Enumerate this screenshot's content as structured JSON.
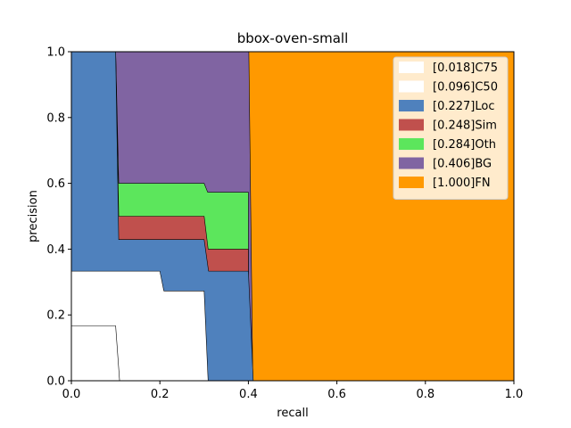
{
  "chart_data": {
    "type": "area",
    "title": "bbox-oven-small",
    "xlabel": "recall",
    "ylabel": "precision",
    "xlim": [
      0,
      1
    ],
    "ylim": [
      0,
      1
    ],
    "xticks": [
      "0.0",
      "0.2",
      "0.4",
      "0.6",
      "0.8",
      "1.0"
    ],
    "yticks": [
      "0.0",
      "0.2",
      "0.4",
      "0.6",
      "0.8",
      "1.0"
    ],
    "grid": false,
    "legend_position": "top-right",
    "series": [
      {
        "name": "[1.000]FN",
        "color": "#ff9900",
        "points": [
          [
            0,
            1
          ],
          [
            1,
            1
          ]
        ]
      },
      {
        "name": "[0.406]BG",
        "color": "#8064a2",
        "points": [
          [
            0,
            1
          ],
          [
            0.401,
            1
          ],
          [
            0.41,
            0.0
          ]
        ]
      },
      {
        "name": "[0.284]Oth",
        "color": "#5ce65c",
        "points": [
          [
            0,
            1
          ],
          [
            0.1,
            1
          ],
          [
            0.107,
            0.6
          ],
          [
            0.3,
            0.6
          ],
          [
            0.308,
            0.573
          ],
          [
            0.4,
            0.573
          ],
          [
            0.4,
            0.0
          ]
        ]
      },
      {
        "name": "[0.248]Sim",
        "color": "#c0504d",
        "points": [
          [
            0,
            1
          ],
          [
            0.1,
            1
          ],
          [
            0.107,
            0.5
          ],
          [
            0.3,
            0.5
          ],
          [
            0.309,
            0.4
          ],
          [
            0.4,
            0.4
          ],
          [
            0.4,
            0.0
          ]
        ]
      },
      {
        "name": "[0.227]Loc",
        "color": "#4f81bd",
        "points": [
          [
            0,
            1
          ],
          [
            0.1,
            1
          ],
          [
            0.107,
            0.429
          ],
          [
            0.3,
            0.429
          ],
          [
            0.31,
            0.333
          ],
          [
            0.4,
            0.333
          ],
          [
            0.411,
            0.0
          ]
        ]
      },
      {
        "name": "[0.096]C50",
        "color": "#ffffff",
        "points": [
          [
            0,
            0.333
          ],
          [
            0.2,
            0.333
          ],
          [
            0.209,
            0.273
          ],
          [
            0.3,
            0.273
          ],
          [
            0.309,
            0.0
          ]
        ]
      },
      {
        "name": "[0.018]C75",
        "color": "#ffffff",
        "points": [
          [
            0,
            0.167
          ],
          [
            0.1,
            0.167
          ],
          [
            0.109,
            0.0
          ]
        ]
      }
    ],
    "legend_order": [
      "[0.018]C75",
      "[0.096]C50",
      "[0.227]Loc",
      "[0.248]Sim",
      "[0.284]Oth",
      "[0.406]BG",
      "[1.000]FN"
    ]
  }
}
